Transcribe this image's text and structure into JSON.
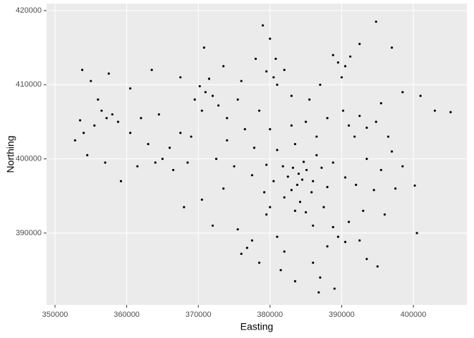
{
  "chart_data": {
    "type": "scatter",
    "x_label": "Easting",
    "y_label": "Northing",
    "xlim": [
      348820,
      407480
    ],
    "ylim": [
      380310,
      420950
    ],
    "xticks": [
      350000,
      360000,
      370000,
      380000,
      390000,
      400000
    ],
    "yticks": [
      390000,
      400000,
      410000,
      420000
    ],
    "grid": true,
    "color": "#000000",
    "x": [
      384000,
      384500,
      383200,
      385100,
      383800,
      382500,
      386000,
      384700,
      383000,
      385800,
      381800,
      387200,
      384200,
      382000,
      388000,
      380500,
      386500,
      381000,
      383500,
      388800,
      379500,
      387500,
      385000,
      379200,
      390500,
      377500,
      392000,
      394500,
      397500,
      400200,
      391000,
      392500,
      393500,
      390200,
      394800,
      391800,
      395500,
      396500,
      389500,
      390500,
      388800,
      391200,
      390000,
      392500,
      394800,
      397000,
      398500,
      401000,
      403000,
      405200,
      380500,
      381000,
      379500,
      382000,
      380800,
      379000,
      380000,
      371000,
      372000,
      370200,
      371500,
      369500,
      372800,
      370500,
      370800,
      373500,
      367500,
      363500,
      358000,
      357200,
      356500,
      358800,
      355500,
      353500,
      352800,
      354000,
      356000,
      355000,
      353800,
      357500,
      360500,
      361500,
      359200,
      357000,
      354500,
      365000,
      366000,
      364000,
      366500,
      363000,
      367500,
      368000,
      370500,
      372000,
      373500,
      375000,
      374000,
      376500,
      377800,
      376800,
      377500,
      376000,
      378500,
      375500,
      379500,
      381000,
      382000,
      381500,
      383500,
      386000,
      388000,
      389500,
      390500,
      388800,
      391000,
      392500,
      387000,
      389000,
      386800,
      393500,
      395000,
      393000,
      396000,
      395500,
      393500,
      397000,
      398500,
      400500,
      385000,
      386500,
      383000,
      378500,
      375500,
      374000,
      385500,
      387000,
      383000,
      378000,
      376000,
      362000,
      364500,
      360500,
      369000,
      368500,
      372500,
      380000,
      388000,
      383500,
      386000,
      380000
    ],
    "y": [
      398000,
      397200,
      398800,
      398500,
      396500,
      397600,
      397000,
      399600,
      395800,
      395500,
      399000,
      398800,
      394200,
      394800,
      396200,
      397000,
      400500,
      401200,
      402000,
      399500,
      399200,
      393500,
      392800,
      395500,
      397500,
      397800,
      396500,
      395800,
      396000,
      396400,
      404500,
      405800,
      404200,
      406500,
      405000,
      403000,
      407500,
      403000,
      413000,
      412500,
      414000,
      413800,
      411000,
      415500,
      418500,
      415000,
      409000,
      408500,
      406500,
      406300,
      411000,
      410000,
      411800,
      412000,
      413500,
      418000,
      416200,
      409000,
      408500,
      409800,
      410800,
      408000,
      407200,
      406500,
      415000,
      412500,
      411000,
      412000,
      406000,
      405500,
      406500,
      405000,
      404500,
      405200,
      402500,
      403500,
      408000,
      410500,
      412000,
      411500,
      403500,
      399000,
      397000,
      399500,
      400500,
      400000,
      401500,
      399500,
      398500,
      402000,
      403500,
      393500,
      394500,
      391000,
      396000,
      399000,
      402500,
      404000,
      401500,
      388000,
      389000,
      387200,
      386000,
      390500,
      392500,
      389500,
      387500,
      385000,
      383500,
      386000,
      388200,
      389500,
      388800,
      390800,
      391500,
      389000,
      384000,
      382500,
      382000,
      386500,
      385500,
      393000,
      392500,
      398500,
      400000,
      401000,
      399000,
      390000,
      405000,
      403000,
      404500,
      406500,
      408000,
      405500,
      408000,
      410000,
      408500,
      413500,
      410500,
      405500,
      406000,
      409500,
      403000,
      399500,
      400000,
      404000,
      405500,
      393000,
      391000,
      393500
    ]
  }
}
